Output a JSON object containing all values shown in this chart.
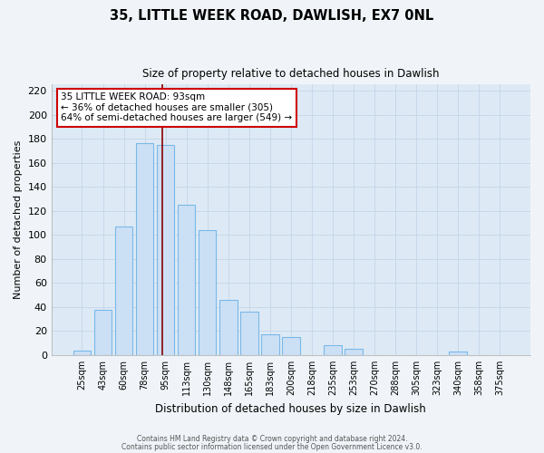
{
  "title": "35, LITTLE WEEK ROAD, DAWLISH, EX7 0NL",
  "subtitle": "Size of property relative to detached houses in Dawlish",
  "xlabel": "Distribution of detached houses by size in Dawlish",
  "ylabel": "Number of detached properties",
  "bar_labels": [
    "25sqm",
    "43sqm",
    "60sqm",
    "78sqm",
    "95sqm",
    "113sqm",
    "130sqm",
    "148sqm",
    "165sqm",
    "183sqm",
    "200sqm",
    "218sqm",
    "235sqm",
    "253sqm",
    "270sqm",
    "288sqm",
    "305sqm",
    "323sqm",
    "340sqm",
    "358sqm",
    "375sqm"
  ],
  "bar_values": [
    4,
    38,
    107,
    176,
    175,
    125,
    104,
    46,
    36,
    17,
    15,
    0,
    8,
    5,
    0,
    0,
    0,
    0,
    3,
    0,
    0
  ],
  "bar_color": "#cce0f5",
  "bar_edge_color": "#7ab8e8",
  "ylim": [
    0,
    225
  ],
  "yticks": [
    0,
    20,
    40,
    60,
    80,
    100,
    120,
    140,
    160,
    180,
    200,
    220
  ],
  "vline_x": 3.85,
  "annotation_title": "35 LITTLE WEEK ROAD: 93sqm",
  "annotation_line1": "← 36% of detached houses are smaller (305)",
  "annotation_line2": "64% of semi-detached houses are larger (549) →",
  "footer1": "Contains HM Land Registry data © Crown copyright and database right 2024.",
  "footer2": "Contains public sector information licensed under the Open Government Licence v3.0.",
  "grid_color": "#c8d8ea",
  "background_color": "#ddeaf5",
  "fig_bg_color": "#f0f4f8"
}
